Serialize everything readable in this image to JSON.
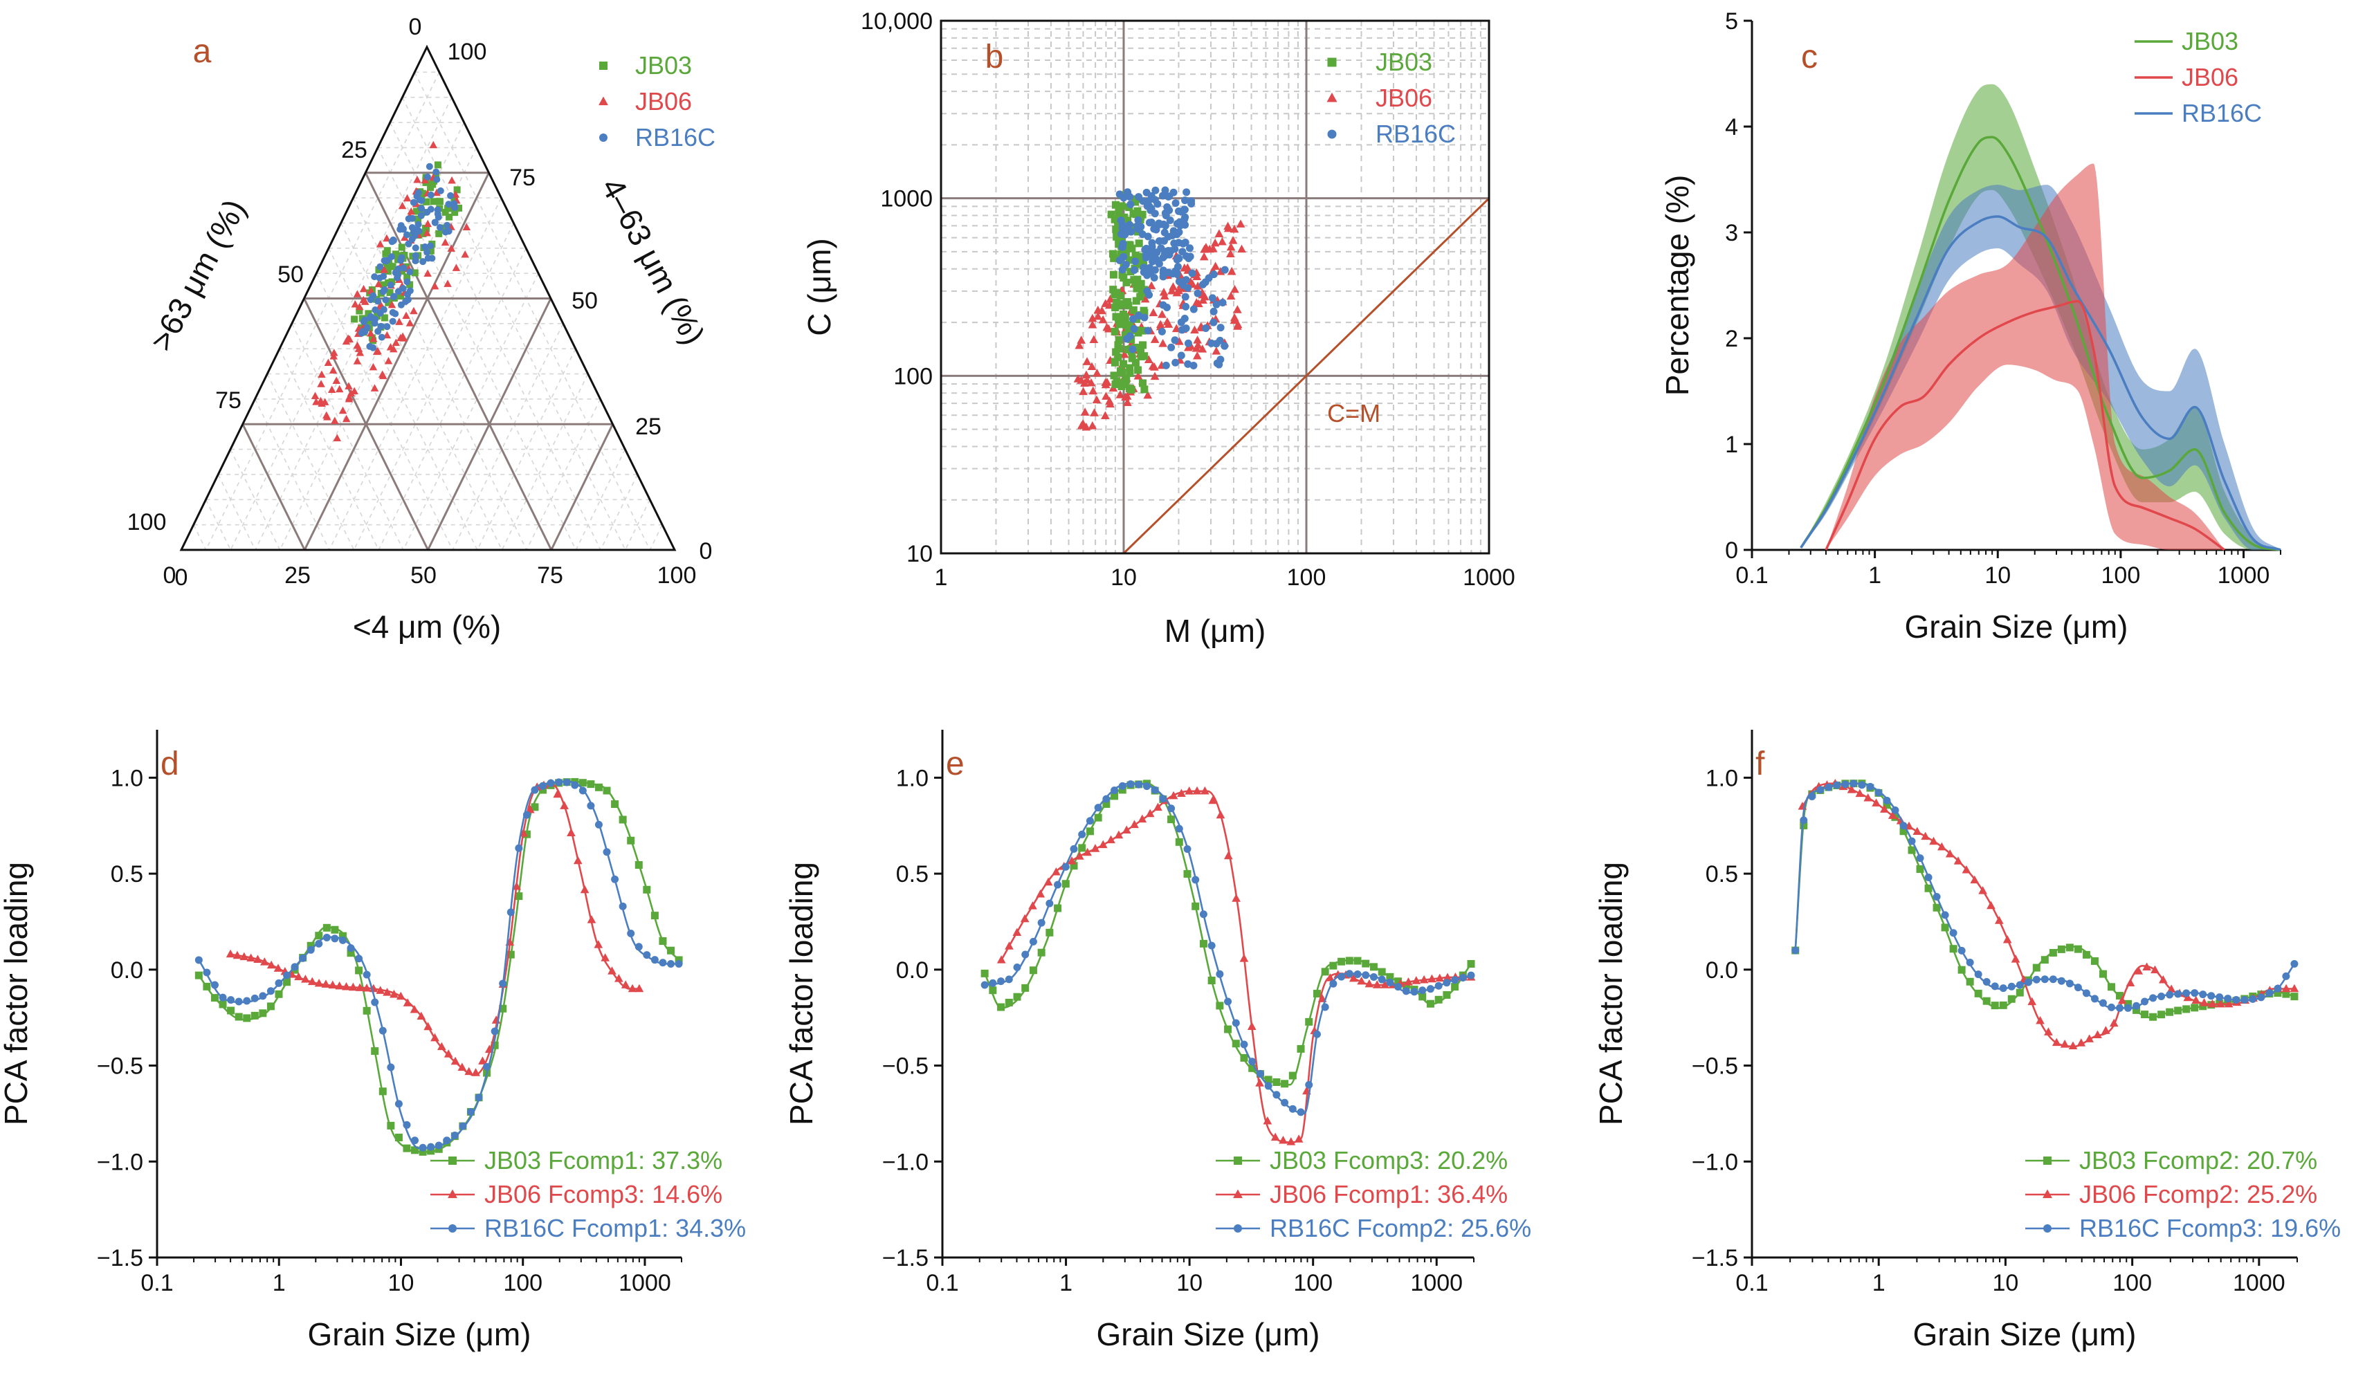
{
  "colors": {
    "JB03": "#5aa83a",
    "JB06": "#e0484b",
    "RB16C": "#4a7ec0",
    "label": "#b5502a"
  },
  "chart_data": [
    {
      "id": "a",
      "type": "scatter",
      "subtype": "ternary",
      "panel_label": "a",
      "axis_labels": {
        "bottom": "<4 μm (%)",
        "left": ">63 μm (%)",
        "right": "4–63 μm (%)"
      },
      "ticks": [
        "0",
        "25",
        "50",
        "75",
        "100"
      ],
      "legend": [
        "JB03",
        "JB06",
        "RB16C"
      ],
      "series": [
        {
          "name": "JB03",
          "clay_range": [
            10,
            22
          ],
          "sand_range": [
            8,
            42
          ],
          "n": 90
        },
        {
          "name": "JB06",
          "clay_range": [
            8,
            30
          ],
          "sand_range": [
            8,
            58
          ],
          "n": 110
        },
        {
          "name": "RB16C",
          "clay_range": [
            10,
            24
          ],
          "sand_range": [
            10,
            42
          ],
          "n": 110
        }
      ]
    },
    {
      "id": "b",
      "type": "scatter",
      "subtype": "C-M diagram (log-log)",
      "panel_label": "b",
      "xlabel": "M (μm)",
      "ylabel": "C (μm)",
      "xlim": [
        1,
        1000
      ],
      "ylim": [
        10,
        10000
      ],
      "x_ticks": [
        "1",
        "10",
        "100",
        "1000"
      ],
      "y_ticks": [
        "10",
        "100",
        "1000",
        "10,000"
      ],
      "annotation": "C=M",
      "legend": [
        "JB03",
        "JB06",
        "RB16C"
      ],
      "series": [
        {
          "name": "JB03",
          "M_range": [
            8,
            13
          ],
          "C_range": [
            80,
            1200
          ],
          "n": 140
        },
        {
          "name": "JB06",
          "M_range": [
            5.5,
            45
          ],
          "C_range": [
            45,
            900
          ],
          "n": 170
        },
        {
          "name": "RB16C",
          "M_range": [
            9,
            38
          ],
          "C_range": [
            110,
            1250
          ],
          "n": 190
        }
      ]
    },
    {
      "id": "c",
      "type": "area",
      "subtype": "mean grain-size distribution with spread band",
      "panel_label": "c",
      "xlabel": "Grain Size (μm)",
      "ylabel": "Percentage (%)",
      "xlim": [
        0.1,
        2000
      ],
      "ylim": [
        0,
        5
      ],
      "x_ticks": [
        "0.1",
        "1",
        "10",
        "100",
        "1000"
      ],
      "y_ticks": [
        "0",
        "1",
        "2",
        "3",
        "4",
        "5"
      ],
      "legend": [
        "JB03",
        "JB06",
        "RB16C"
      ],
      "series": [
        {
          "name": "JB03",
          "x": [
            0.25,
            0.4,
            0.7,
            1.2,
            2.2,
            4,
            7,
            9,
            12,
            20,
            40,
            80,
            150,
            250,
            400,
            700,
            1200,
            2000
          ],
          "mean": [
            0.02,
            0.4,
            0.98,
            1.6,
            2.45,
            3.3,
            3.85,
            3.9,
            3.75,
            3.2,
            2.3,
            1.25,
            0.68,
            0.75,
            0.95,
            0.35,
            0.05,
            0.0
          ],
          "upper": [
            0.02,
            0.45,
            1.05,
            1.75,
            2.75,
            3.75,
            4.35,
            4.4,
            4.25,
            3.6,
            2.6,
            1.45,
            0.95,
            1.05,
            1.35,
            0.55,
            0.1,
            0.0
          ],
          "lower": [
            0.02,
            0.35,
            0.88,
            1.45,
            2.15,
            2.85,
            3.35,
            3.4,
            3.25,
            2.75,
            1.95,
            1.0,
            0.45,
            0.45,
            0.55,
            0.15,
            0.0,
            0.0
          ]
        },
        {
          "name": "JB06",
          "x": [
            0.4,
            0.6,
            1.0,
            1.6,
            2.5,
            4,
            7,
            12,
            20,
            30,
            45,
            60,
            90,
            150,
            250,
            400,
            700
          ],
          "mean": [
            0.0,
            0.45,
            1.05,
            1.35,
            1.45,
            1.75,
            2.0,
            2.15,
            2.25,
            2.3,
            2.35,
            1.9,
            0.6,
            0.4,
            0.3,
            0.2,
            0.0
          ],
          "upper": [
            0.0,
            0.6,
            1.45,
            1.95,
            2.2,
            2.45,
            2.6,
            2.7,
            3.05,
            3.35,
            3.55,
            3.65,
            1.0,
            0.7,
            0.5,
            0.35,
            0.0
          ],
          "lower": [
            0.0,
            0.3,
            0.7,
            0.9,
            1.0,
            1.2,
            1.55,
            1.75,
            1.7,
            1.6,
            1.5,
            1.0,
            0.15,
            0.05,
            0.0,
            0.0,
            0.0
          ]
        },
        {
          "name": "RB16C",
          "x": [
            0.25,
            0.4,
            0.7,
            1.2,
            2.2,
            4,
            7,
            10,
            15,
            25,
            40,
            80,
            150,
            250,
            400,
            700,
            1200,
            2000
          ],
          "mean": [
            0.02,
            0.38,
            0.92,
            1.5,
            2.2,
            2.85,
            3.1,
            3.15,
            3.05,
            2.95,
            2.5,
            1.9,
            1.25,
            1.05,
            1.35,
            0.65,
            0.1,
            0.0
          ],
          "upper": [
            0.02,
            0.42,
            1.0,
            1.65,
            2.45,
            3.15,
            3.4,
            3.45,
            3.4,
            3.45,
            3.1,
            2.3,
            1.6,
            1.5,
            1.9,
            1.0,
            0.2,
            0.0
          ],
          "lower": [
            0.02,
            0.34,
            0.85,
            1.35,
            1.95,
            2.55,
            2.8,
            2.85,
            2.7,
            2.45,
            1.9,
            1.4,
            0.85,
            0.6,
            0.8,
            0.3,
            0.0,
            0.0
          ]
        }
      ]
    },
    {
      "id": "d",
      "type": "line",
      "panel_label": "d",
      "xlabel": "Grain Size (μm)",
      "ylabel": "PCA factor loading",
      "xlim": [
        0.1,
        2000
      ],
      "ylim": [
        -1.5,
        1.25
      ],
      "x_ticks": [
        "0.1",
        "1",
        "10",
        "100",
        "1000"
      ],
      "y_ticks": [
        "−1.5",
        "−1.0",
        "−0.5",
        "0.0",
        "0.5",
        "1.0"
      ],
      "series": [
        {
          "name": "JB03",
          "label": "JB03 Fcomp1: 37.3%",
          "x": [
            0.22,
            0.3,
            0.5,
            0.8,
            1.2,
            1.8,
            2.4,
            3.2,
            4.5,
            6,
            8,
            11,
            15,
            20,
            30,
            45,
            65,
            85,
            110,
            140,
            180,
            250,
            350,
            500,
            700,
            1000,
            1400,
            1900
          ],
          "y": [
            -0.03,
            -0.15,
            -0.26,
            -0.22,
            -0.05,
            0.12,
            0.22,
            0.2,
            0.0,
            -0.4,
            -0.8,
            -0.93,
            -0.95,
            -0.94,
            -0.85,
            -0.65,
            -0.3,
            0.2,
            0.75,
            0.93,
            0.97,
            0.98,
            0.97,
            0.93,
            0.75,
            0.45,
            0.15,
            0.05
          ]
        },
        {
          "name": "JB06",
          "label": "JB06 Fcomp3: 14.6%",
          "x": [
            0.4,
            0.7,
            1.2,
            2,
            3.5,
            6,
            10,
            15,
            20,
            30,
            40,
            55,
            75,
            100,
            130,
            170,
            220,
            300,
            400,
            550,
            750,
            900
          ],
          "y": [
            0.08,
            0.05,
            -0.02,
            -0.07,
            -0.09,
            -0.1,
            -0.14,
            -0.25,
            -0.38,
            -0.5,
            -0.55,
            -0.4,
            0.05,
            0.7,
            0.95,
            0.97,
            0.85,
            0.5,
            0.15,
            -0.02,
            -0.1,
            -0.1
          ]
        },
        {
          "name": "RB16C",
          "label": "RB16C Fcomp1: 34.3%",
          "x": [
            0.22,
            0.35,
            0.5,
            0.8,
            1.2,
            1.8,
            2.5,
            3.5,
            5,
            7,
            10,
            14,
            20,
            30,
            45,
            65,
            90,
            120,
            160,
            220,
            300,
            400,
            550,
            800,
            1100,
            1500,
            1900
          ],
          "y": [
            0.05,
            -0.15,
            -0.17,
            -0.13,
            -0.02,
            0.1,
            0.17,
            0.15,
            0.02,
            -0.3,
            -0.75,
            -0.93,
            -0.92,
            -0.85,
            -0.65,
            -0.2,
            0.6,
            0.93,
            0.97,
            0.98,
            0.95,
            0.8,
            0.5,
            0.15,
            0.06,
            0.03,
            0.03
          ]
        }
      ]
    },
    {
      "id": "e",
      "type": "line",
      "panel_label": "e",
      "xlabel": "Grain Size (μm)",
      "ylabel": "PCA factor loading",
      "xlim": [
        0.1,
        2000
      ],
      "ylim": [
        -1.5,
        1.25
      ],
      "x_ticks": [
        "0.1",
        "1",
        "10",
        "100",
        "1000"
      ],
      "y_ticks": [
        "−1.5",
        "−1.0",
        "−0.5",
        "0.0",
        "0.5",
        "1.0"
      ],
      "series": [
        {
          "name": "JB03",
          "label": "JB03 Fcomp3: 20.2%",
          "x": [
            0.22,
            0.3,
            0.45,
            0.7,
            1.0,
            1.5,
            2.2,
            3.2,
            4.5,
            6,
            8,
            11,
            15,
            20,
            30,
            45,
            65,
            90,
            120,
            160,
            220,
            300,
            450,
            650,
            900,
            1300,
            1900
          ],
          "y": [
            -0.02,
            -0.2,
            -0.12,
            0.15,
            0.45,
            0.7,
            0.88,
            0.96,
            0.97,
            0.9,
            0.7,
            0.35,
            -0.05,
            -0.3,
            -0.5,
            -0.58,
            -0.6,
            -0.3,
            -0.02,
            0.04,
            0.05,
            0.02,
            -0.05,
            -0.1,
            -0.18,
            -0.12,
            0.03
          ]
        },
        {
          "name": "JB06",
          "label": "JB06 Fcomp1: 36.4%",
          "x": [
            0.3,
            0.5,
            0.8,
            1.2,
            2,
            3,
            5,
            7,
            10,
            14,
            18,
            25,
            32,
            40,
            50,
            65,
            80,
            100,
            130,
            170,
            220,
            300,
            450,
            650,
            900,
            1300,
            1900
          ],
          "y": [
            0.05,
            0.3,
            0.5,
            0.58,
            0.65,
            0.72,
            0.82,
            0.9,
            0.93,
            0.93,
            0.8,
            0.3,
            -0.3,
            -0.75,
            -0.88,
            -0.9,
            -0.88,
            -0.35,
            -0.05,
            -0.02,
            -0.05,
            -0.08,
            -0.08,
            -0.06,
            -0.05,
            -0.04,
            -0.04
          ]
        },
        {
          "name": "RB16C",
          "label": "RB16C Fcomp2: 25.6%",
          "x": [
            0.22,
            0.35,
            0.55,
            0.8,
            1.2,
            1.8,
            2.6,
            3.5,
            5,
            7,
            10,
            14,
            20,
            30,
            45,
            65,
            85,
            110,
            150,
            200,
            280,
            400,
            600,
            900,
            1300,
            1900
          ],
          "y": [
            -0.08,
            -0.05,
            0.15,
            0.4,
            0.65,
            0.84,
            0.95,
            0.97,
            0.95,
            0.85,
            0.6,
            0.2,
            -0.15,
            -0.45,
            -0.62,
            -0.72,
            -0.75,
            -0.3,
            -0.05,
            -0.02,
            -0.03,
            -0.06,
            -0.12,
            -0.1,
            -0.06,
            -0.03
          ]
        }
      ]
    },
    {
      "id": "f",
      "type": "line",
      "panel_label": "f",
      "xlabel": "Grain Size (μm)",
      "ylabel": "PCA factor loading",
      "xlim": [
        0.1,
        2000
      ],
      "ylim": [
        -1.5,
        1.25
      ],
      "x_ticks": [
        "0.1",
        "1",
        "10",
        "100",
        "1000"
      ],
      "y_ticks": [
        "−1.5",
        "−1.0",
        "−0.5",
        "0.0",
        "0.5",
        "1.0"
      ],
      "series": [
        {
          "name": "JB03",
          "label": "JB03 Fcomp2: 20.7%",
          "x": [
            0.22,
            0.26,
            0.3,
            0.4,
            0.55,
            0.75,
            1.0,
            1.5,
            2.2,
            3.2,
            4.5,
            6.5,
            9,
            13,
            18,
            25,
            35,
            50,
            70,
            100,
            140,
            200,
            300,
            450,
            700,
            1000,
            1500,
            1900
          ],
          "y": [
            0.1,
            0.82,
            0.92,
            0.95,
            0.97,
            0.97,
            0.92,
            0.75,
            0.5,
            0.25,
            0.0,
            -0.15,
            -0.2,
            -0.12,
            0.02,
            0.1,
            0.12,
            0.05,
            -0.1,
            -0.2,
            -0.25,
            -0.22,
            -0.2,
            -0.18,
            -0.16,
            -0.13,
            -0.12,
            -0.14
          ]
        },
        {
          "name": "JB06",
          "label": "JB06 Fcomp2: 25.2%",
          "x": [
            0.25,
            0.32,
            0.45,
            0.65,
            0.9,
            1.3,
            2,
            3,
            4.5,
            6.5,
            9,
            13,
            18,
            25,
            35,
            50,
            70,
            90,
            120,
            150,
            200,
            280,
            400,
            600,
            900,
            1300,
            1900
          ],
          "y": [
            0.85,
            0.95,
            0.97,
            0.93,
            0.88,
            0.8,
            0.72,
            0.65,
            0.55,
            0.42,
            0.25,
            0.0,
            -0.25,
            -0.38,
            -0.4,
            -0.35,
            -0.3,
            -0.1,
            0.02,
            0.0,
            -0.1,
            -0.15,
            -0.18,
            -0.18,
            -0.15,
            -0.1,
            -0.1
          ]
        },
        {
          "name": "RB16C",
          "label": "RB16C Fcomp3: 19.6%",
          "x": [
            0.22,
            0.26,
            0.32,
            0.45,
            0.65,
            0.9,
            1.3,
            2,
            3,
            4.5,
            6.5,
            9,
            13,
            18,
            25,
            35,
            50,
            70,
            100,
            140,
            200,
            300,
            450,
            700,
            1000,
            1400,
            1900
          ],
          "y": [
            0.1,
            0.85,
            0.93,
            0.96,
            0.97,
            0.95,
            0.85,
            0.62,
            0.35,
            0.1,
            -0.05,
            -0.1,
            -0.08,
            -0.05,
            -0.05,
            -0.08,
            -0.15,
            -0.2,
            -0.2,
            -0.15,
            -0.13,
            -0.12,
            -0.14,
            -0.16,
            -0.15,
            -0.1,
            0.03
          ]
        }
      ]
    }
  ]
}
